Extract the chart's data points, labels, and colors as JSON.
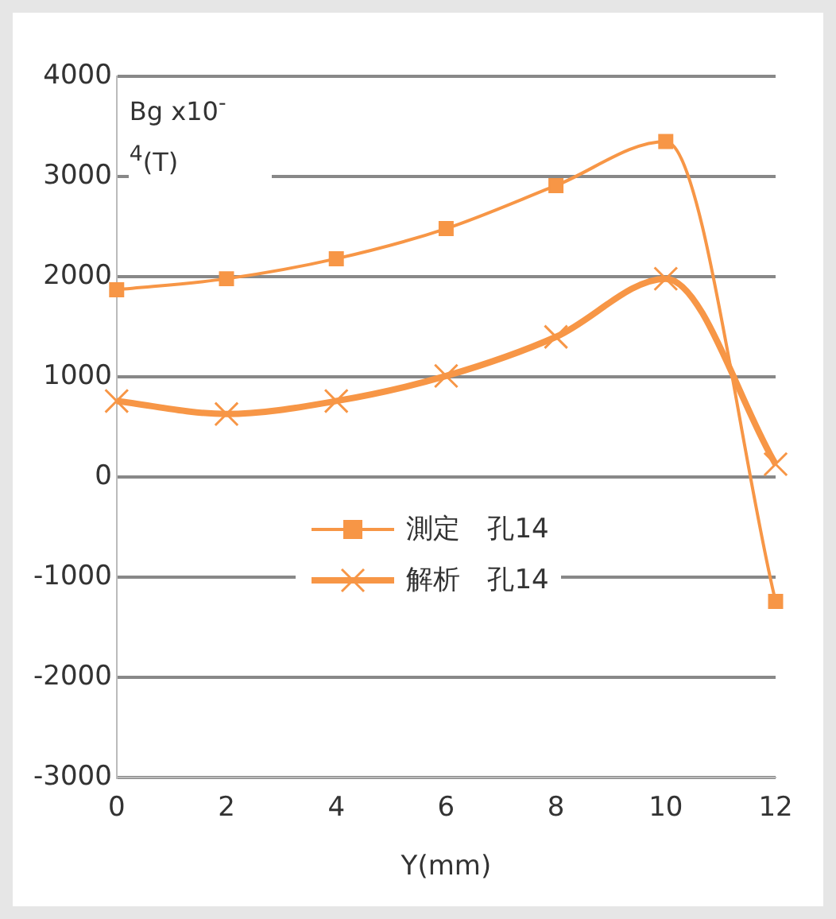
{
  "chart_data": {
    "type": "line",
    "ylabel": "Bg x10$^{-4}$(T)",
    "xlabel": "Y(mm)",
    "x": [
      0,
      2,
      4,
      6,
      8,
      10,
      12
    ],
    "xlim": [
      0,
      12
    ],
    "xticks": [
      0,
      2,
      4,
      6,
      8,
      10,
      12
    ],
    "ylim": [
      -3000,
      4000
    ],
    "yticks": [
      -3000,
      -2000,
      -1000,
      0,
      1000,
      2000,
      3000,
      4000
    ],
    "grid": "y",
    "legend": "center",
    "series": [
      {
        "name": "測定　孔14",
        "color": "#f79646",
        "marker": "square",
        "values": [
          1870,
          1980,
          2180,
          2480,
          2910,
          3350,
          -1240
        ]
      },
      {
        "name": "解析　孔14",
        "color": "#f79646",
        "marker": "cross",
        "values": [
          760,
          630,
          760,
          1010,
          1400,
          1980,
          130
        ]
      }
    ]
  }
}
